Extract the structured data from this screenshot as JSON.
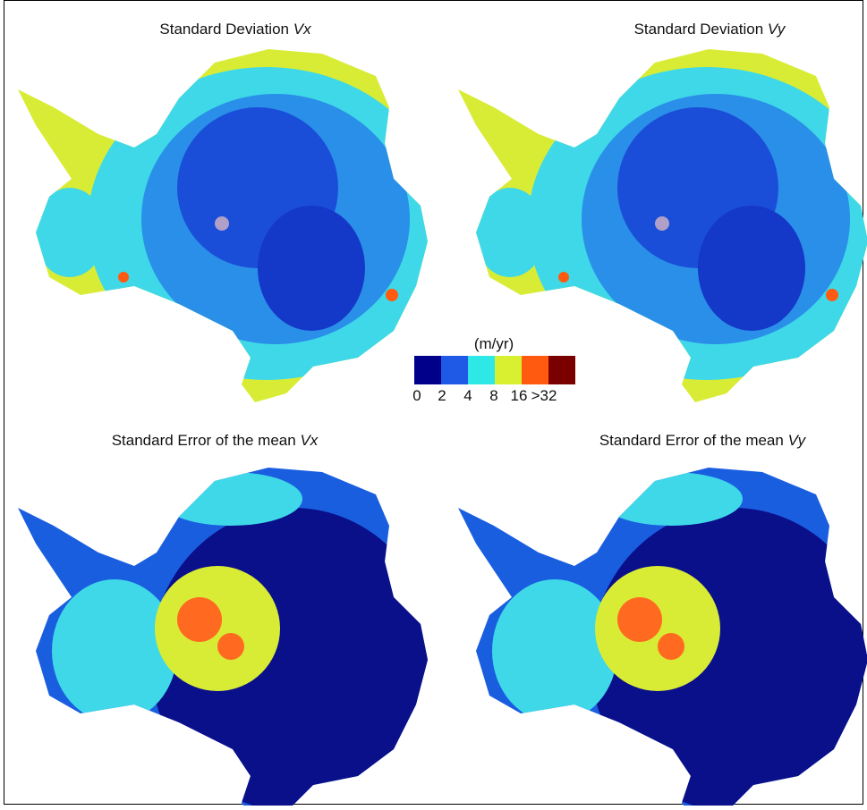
{
  "panels": [
    {
      "title": "Standard Deviation",
      "variable": "Vx"
    },
    {
      "title": "Standard Deviation",
      "variable": "Vy"
    },
    {
      "title": "Standard Error of the mean",
      "variable": "Vx"
    },
    {
      "title": "Standard Error of the mean",
      "variable": "Vy"
    }
  ],
  "colorbar": {
    "unit": "(m/yr)",
    "labels": [
      "0",
      "2",
      "4",
      "8",
      "16",
      ">32"
    ]
  }
}
